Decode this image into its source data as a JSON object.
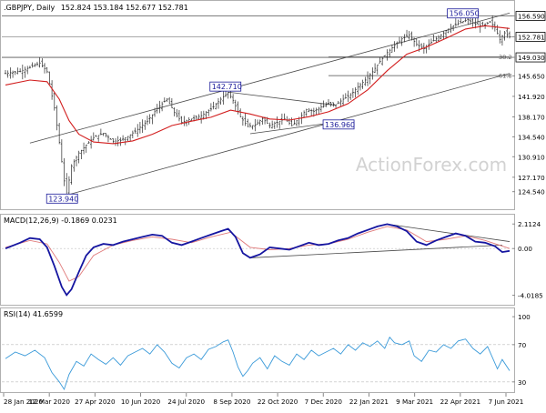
{
  "chart_data": [
    {
      "type": "candlestick",
      "panel": "price",
      "header": ".GBPJPY, Daily",
      "ohlc_label": "152.824 153.184 152.677 152.781",
      "watermark": "ActionForex.com",
      "ylim": [
        122.0,
        157.5
      ],
      "y_ticks": [
        124.54,
        127.17,
        130.91,
        134.54,
        138.17,
        141.92,
        145.65,
        149.03,
        152.781,
        156.59
      ],
      "last_price": 152.781,
      "last_price_label": "152.781",
      "top_label": "156.590",
      "level_149_label": "149.030",
      "price_path": [
        [
          0,
          146.1
        ],
        [
          6,
          146.5
        ],
        [
          10,
          147.2
        ],
        [
          14,
          148.0
        ],
        [
          17,
          146.4
        ],
        [
          20,
          139.8
        ],
        [
          22,
          133.5
        ],
        [
          24,
          126.5
        ],
        [
          25,
          124.1
        ],
        [
          27,
          129.2
        ],
        [
          30,
          131.6
        ],
        [
          33,
          133.0
        ],
        [
          36,
          134.4
        ],
        [
          40,
          135.2
        ],
        [
          44,
          133.7
        ],
        [
          47,
          133.9
        ],
        [
          50,
          134.6
        ],
        [
          54,
          135.9
        ],
        [
          58,
          137.4
        ],
        [
          62,
          139.7
        ],
        [
          66,
          141.4
        ],
        [
          69,
          139.0
        ],
        [
          72,
          137.2
        ],
        [
          76,
          137.8
        ],
        [
          80,
          138.4
        ],
        [
          84,
          139.6
        ],
        [
          88,
          141.4
        ],
        [
          91,
          142.6
        ],
        [
          93,
          141.2
        ],
        [
          96,
          138.2
        ],
        [
          99,
          136.4
        ],
        [
          102,
          136.7
        ],
        [
          105,
          137.9
        ],
        [
          108,
          136.6
        ],
        [
          111,
          137.2
        ],
        [
          114,
          137.8
        ],
        [
          117,
          136.6
        ],
        [
          120,
          137.9
        ],
        [
          123,
          139.5
        ],
        [
          126,
          139.2
        ],
        [
          129,
          140.0
        ],
        [
          132,
          140.6
        ],
        [
          135,
          140.4
        ],
        [
          138,
          141.4
        ],
        [
          141,
          142.2
        ],
        [
          144,
          143.6
        ],
        [
          147,
          144.9
        ],
        [
          150,
          146.4
        ],
        [
          153,
          148.3
        ],
        [
          156,
          149.9
        ],
        [
          159,
          151.2
        ],
        [
          162,
          152.4
        ],
        [
          165,
          153.1
        ],
        [
          168,
          151.4
        ],
        [
          171,
          150.6
        ],
        [
          174,
          151.8
        ],
        [
          177,
          152.7
        ],
        [
          180,
          153.9
        ],
        [
          183,
          154.8
        ],
        [
          186,
          155.4
        ],
        [
          189,
          155.9
        ],
        [
          192,
          155.1
        ],
        [
          195,
          154.7
        ],
        [
          198,
          155.5
        ],
        [
          200,
          154.5
        ],
        [
          202,
          152.3
        ],
        [
          204,
          153.5
        ],
        [
          206,
          152.8
        ]
      ],
      "ma_path": [
        [
          0,
          144.0
        ],
        [
          10,
          144.9
        ],
        [
          17,
          144.6
        ],
        [
          22,
          141.4
        ],
        [
          26,
          137.5
        ],
        [
          30,
          135.0
        ],
        [
          36,
          133.6
        ],
        [
          44,
          133.3
        ],
        [
          52,
          133.8
        ],
        [
          60,
          135.0
        ],
        [
          68,
          136.6
        ],
        [
          76,
          137.4
        ],
        [
          84,
          138.1
        ],
        [
          92,
          139.4
        ],
        [
          100,
          138.7
        ],
        [
          108,
          137.8
        ],
        [
          116,
          137.6
        ],
        [
          124,
          138.2
        ],
        [
          132,
          139.1
        ],
        [
          140,
          140.6
        ],
        [
          148,
          143.1
        ],
        [
          156,
          146.6
        ],
        [
          164,
          149.6
        ],
        [
          172,
          150.9
        ],
        [
          180,
          152.5
        ],
        [
          188,
          154.2
        ],
        [
          196,
          154.8
        ],
        [
          206,
          154.3
        ]
      ],
      "x_labels": [
        "28 Jan 2020",
        "12 Mar 2020",
        "27 Apr 2020",
        "10 Jun 2020",
        "24 Jul 2020",
        "8 Sep 2020",
        "22 Oct 2020",
        "7 Dec 2020",
        "22 Jan 2021",
        "9 Mar 2021",
        "22 Apr 2021",
        "7 Jun 2021"
      ],
      "annotations": [
        {
          "text": "156.050",
          "x": 188,
          "y": 156.05
        },
        {
          "text": "142.710",
          "x": 91,
          "y": 142.71
        },
        {
          "text": "136.960",
          "x": 135,
          "y": 136.96
        },
        {
          "text": "123.940",
          "x": 25,
          "y": 123.94
        },
        {
          "text": "38.2",
          "x": 206,
          "y": 149.2
        },
        {
          "text": "61.8",
          "x": 206,
          "y": 145.8
        }
      ],
      "lines": [
        {
          "name": "channel-upper",
          "from": [
            10,
            133.4
          ],
          "to": [
            206,
            157.1
          ]
        },
        {
          "name": "channel-lower",
          "from": [
            25,
            123.9
          ],
          "to": [
            206,
            146.1
          ]
        },
        {
          "name": "triangle-top",
          "from": [
            91,
            142.7
          ],
          "to": [
            135,
            140.3
          ]
        },
        {
          "name": "triangle-bottom",
          "from": [
            100,
            135.1
          ],
          "to": [
            135,
            137.2
          ]
        },
        {
          "name": "fib-38",
          "from": [
            132,
            149.1
          ],
          "to": [
            206,
            149.1
          ]
        },
        {
          "name": "fib-61",
          "from": [
            132,
            145.7
          ],
          "to": [
            206,
            145.7
          ]
        }
      ]
    },
    {
      "type": "line",
      "panel": "macd",
      "title": "MACD(12,26,9) -0.1869 0.0231",
      "ylim": [
        -4.6,
        2.6
      ],
      "y_ticks_labels": [
        "2.1124",
        "0.00",
        "-4.0185"
      ],
      "y_ticks_values": [
        2.1124,
        0.0,
        -4.0185
      ],
      "series": [
        {
          "name": "macd",
          "values": [
            [
              0,
              0.0
            ],
            [
              6,
              0.5
            ],
            [
              10,
              0.9
            ],
            [
              14,
              0.8
            ],
            [
              17,
              0.1
            ],
            [
              20,
              -1.5
            ],
            [
              23,
              -3.3
            ],
            [
              25,
              -4.0
            ],
            [
              27,
              -3.5
            ],
            [
              30,
              -2.0
            ],
            [
              33,
              -0.6
            ],
            [
              36,
              0.1
            ],
            [
              40,
              0.4
            ],
            [
              44,
              0.3
            ],
            [
              48,
              0.6
            ],
            [
              52,
              0.8
            ],
            [
              56,
              1.0
            ],
            [
              60,
              1.2
            ],
            [
              64,
              1.1
            ],
            [
              68,
              0.5
            ],
            [
              72,
              0.3
            ],
            [
              76,
              0.6
            ],
            [
              80,
              0.9
            ],
            [
              84,
              1.2
            ],
            [
              88,
              1.5
            ],
            [
              91,
              1.7
            ],
            [
              94,
              1.0
            ],
            [
              97,
              -0.4
            ],
            [
              100,
              -0.8
            ],
            [
              104,
              -0.5
            ],
            [
              108,
              0.1
            ],
            [
              112,
              0.0
            ],
            [
              116,
              -0.1
            ],
            [
              120,
              0.2
            ],
            [
              124,
              0.5
            ],
            [
              128,
              0.3
            ],
            [
              132,
              0.4
            ],
            [
              136,
              0.7
            ],
            [
              140,
              0.9
            ],
            [
              144,
              1.3
            ],
            [
              148,
              1.6
            ],
            [
              152,
              1.9
            ],
            [
              156,
              2.1
            ],
            [
              160,
              1.9
            ],
            [
              164,
              1.5
            ],
            [
              168,
              0.6
            ],
            [
              172,
              0.3
            ],
            [
              176,
              0.7
            ],
            [
              180,
              1.0
            ],
            [
              184,
              1.3
            ],
            [
              188,
              1.1
            ],
            [
              192,
              0.6
            ],
            [
              196,
              0.5
            ],
            [
              200,
              0.2
            ],
            [
              203,
              -0.3
            ],
            [
              206,
              -0.2
            ]
          ]
        },
        {
          "name": "signal",
          "values": [
            [
              0,
              0.1
            ],
            [
              10,
              0.7
            ],
            [
              17,
              0.4
            ],
            [
              22,
              -1.2
            ],
            [
              26,
              -2.8
            ],
            [
              30,
              -2.4
            ],
            [
              36,
              -0.6
            ],
            [
              44,
              0.3
            ],
            [
              52,
              0.7
            ],
            [
              60,
              1.0
            ],
            [
              68,
              0.8
            ],
            [
              76,
              0.5
            ],
            [
              84,
              1.0
            ],
            [
              92,
              1.4
            ],
            [
              100,
              0.1
            ],
            [
              108,
              -0.1
            ],
            [
              116,
              0.0
            ],
            [
              124,
              0.3
            ],
            [
              132,
              0.4
            ],
            [
              140,
              0.8
            ],
            [
              148,
              1.4
            ],
            [
              156,
              1.9
            ],
            [
              164,
              1.6
            ],
            [
              172,
              0.6
            ],
            [
              180,
              0.8
            ],
            [
              188,
              1.1
            ],
            [
              196,
              0.7
            ],
            [
              206,
              0.0
            ]
          ]
        }
      ],
      "lines": [
        {
          "name": "macd-support",
          "from": [
            100,
            -0.8
          ],
          "to": [
            203,
            0.3
          ]
        },
        {
          "name": "macd-resistance",
          "from": [
            156,
            2.1
          ],
          "to": [
            206,
            0.6
          ]
        }
      ]
    },
    {
      "type": "line",
      "panel": "rsi",
      "title": "RSI(14) 41.6599",
      "ylim": [
        22,
        106
      ],
      "y_ticks_labels": [
        "100",
        "70",
        "30"
      ],
      "y_ticks_values": [
        100,
        70,
        30
      ],
      "levels": [
        70,
        30
      ],
      "series": [
        {
          "name": "rsi",
          "values": [
            [
              0,
              55
            ],
            [
              4,
              62
            ],
            [
              8,
              58
            ],
            [
              12,
              64
            ],
            [
              16,
              56
            ],
            [
              19,
              40
            ],
            [
              22,
              30
            ],
            [
              24,
              22
            ],
            [
              26,
              38
            ],
            [
              29,
              52
            ],
            [
              32,
              47
            ],
            [
              35,
              60
            ],
            [
              38,
              54
            ],
            [
              41,
              49
            ],
            [
              44,
              56
            ],
            [
              47,
              48
            ],
            [
              50,
              58
            ],
            [
              53,
              62
            ],
            [
              56,
              66
            ],
            [
              59,
              60
            ],
            [
              62,
              70
            ],
            [
              65,
              62
            ],
            [
              68,
              50
            ],
            [
              71,
              45
            ],
            [
              74,
              56
            ],
            [
              77,
              60
            ],
            [
              80,
              54
            ],
            [
              83,
              65
            ],
            [
              86,
              68
            ],
            [
              89,
              73
            ],
            [
              91,
              75
            ],
            [
              93,
              62
            ],
            [
              95,
              46
            ],
            [
              97,
              36
            ],
            [
              99,
              42
            ],
            [
              101,
              50
            ],
            [
              104,
              56
            ],
            [
              107,
              44
            ],
            [
              110,
              58
            ],
            [
              113,
              52
            ],
            [
              116,
              48
            ],
            [
              119,
              60
            ],
            [
              122,
              54
            ],
            [
              125,
              64
            ],
            [
              128,
              58
            ],
            [
              131,
              62
            ],
            [
              134,
              66
            ],
            [
              137,
              60
            ],
            [
              140,
              70
            ],
            [
              143,
              64
            ],
            [
              146,
              72
            ],
            [
              149,
              68
            ],
            [
              152,
              74
            ],
            [
              155,
              66
            ],
            [
              157,
              78
            ],
            [
              159,
              72
            ],
            [
              162,
              70
            ],
            [
              165,
              74
            ],
            [
              167,
              58
            ],
            [
              170,
              52
            ],
            [
              173,
              64
            ],
            [
              176,
              62
            ],
            [
              179,
              70
            ],
            [
              182,
              66
            ],
            [
              185,
              74
            ],
            [
              188,
              76
            ],
            [
              191,
              66
            ],
            [
              194,
              60
            ],
            [
              197,
              68
            ],
            [
              199,
              56
            ],
            [
              201,
              44
            ],
            [
              203,
              54
            ],
            [
              206,
              42
            ]
          ]
        }
      ]
    }
  ]
}
